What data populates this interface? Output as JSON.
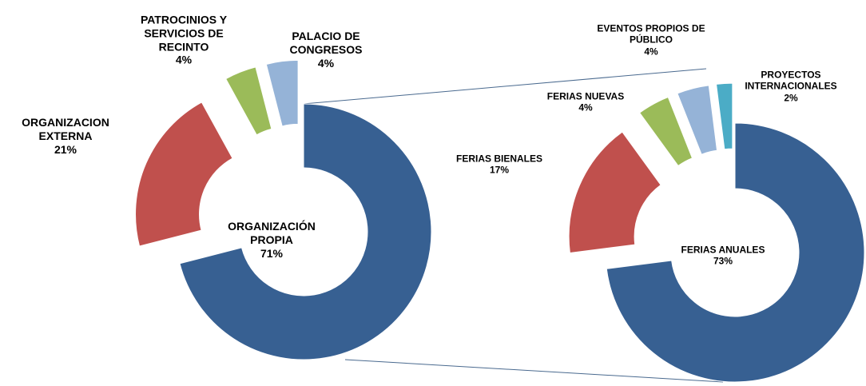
{
  "chart_data": [
    {
      "type": "pie",
      "categories": [
        "ORGANIZACIÓN PROPIA",
        "ORGANIZACION EXTERNA",
        "PATROCINIOS Y SERVICIOS DE RECINTO",
        "PALACIO DE CONGRESOS"
      ],
      "values": [
        71,
        21,
        4,
        4
      ],
      "value_labels": [
        "71%",
        "21%",
        "4%",
        "4%"
      ],
      "colors": [
        "#376092",
        "#c0504d",
        "#9bbb59",
        "#95b3d7"
      ]
    },
    {
      "type": "pie",
      "categories": [
        "FERIAS ANUALES",
        "FERIAS BIENALES",
        "FERIAS NUEVAS",
        "EVENTOS PROPIOS DE PÚBLICO",
        "PROYECTOS INTERNACIONALES"
      ],
      "values": [
        73,
        17,
        4,
        4,
        2
      ],
      "value_labels": [
        "73%",
        "17%",
        "4%",
        "4%",
        "2%"
      ],
      "colors": [
        "#376092",
        "#c0504d",
        "#9bbb59",
        "#95b3d7",
        "#4bacc6"
      ]
    }
  ]
}
